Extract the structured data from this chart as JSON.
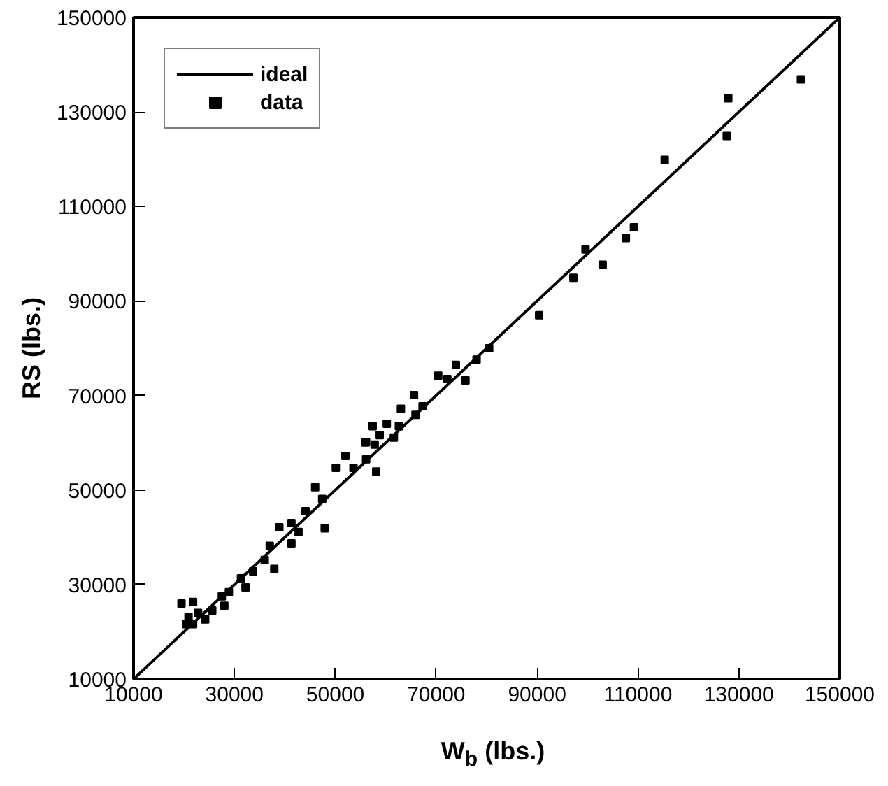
{
  "chart_data": {
    "type": "scatter",
    "xlabel": "W$_{b}$ (lbs.)",
    "ylabel": "RS (lbs.)",
    "xlim": [
      10000,
      150000
    ],
    "ylim": [
      10000,
      150000
    ],
    "xticks": [
      10000,
      30000,
      50000,
      70000,
      90000,
      110000,
      130000,
      150000
    ],
    "yticks": [
      10000,
      30000,
      50000,
      70000,
      90000,
      110000,
      130000,
      150000
    ],
    "grid": false,
    "legend": "top left",
    "series": [
      {
        "name": "ideal",
        "type": "line",
        "color": "#000000",
        "line_style": "solid",
        "marker": "none",
        "x": [
          10000,
          150000
        ],
        "values": [
          10000,
          150000
        ]
      },
      {
        "name": "data",
        "color": "#000000",
        "marker": "square",
        "x": [
          142300,
          127900,
          127600,
          115300,
          109200,
          107600,
          103000,
          99600,
          97200,
          90400,
          80500,
          78000,
          75800,
          73900,
          72200,
          70400,
          67300,
          65600,
          65900,
          63000,
          62600,
          61600,
          60200,
          58800,
          57400,
          56100,
          57800,
          58100,
          56100,
          53600,
          52000,
          50100,
          46000,
          55900,
          47400,
          47900,
          44100,
          41300,
          42700,
          38900,
          41300,
          37000,
          36000,
          37900,
          33700,
          31300,
          32200,
          28900,
          27500,
          28000,
          25600,
          22800,
          20900,
          19500,
          21800,
          21800,
          24200,
          20400
        ],
        "values": [
          136900,
          132900,
          124900,
          119900,
          105600,
          103300,
          97700,
          100900,
          94900,
          87000,
          80000,
          77600,
          73200,
          76500,
          73500,
          74200,
          67700,
          70100,
          65900,
          67200,
          63500,
          61100,
          64000,
          61600,
          63500,
          60100,
          59600,
          53900,
          56500,
          54700,
          57200,
          54700,
          50600,
          60100,
          48100,
          41900,
          45500,
          43000,
          41100,
          42100,
          38700,
          38200,
          35200,
          33300,
          32800,
          31300,
          29400,
          28400,
          27500,
          25500,
          24500,
          24000,
          23100,
          26000,
          26300,
          21600,
          22600,
          21600
        ]
      }
    ]
  }
}
